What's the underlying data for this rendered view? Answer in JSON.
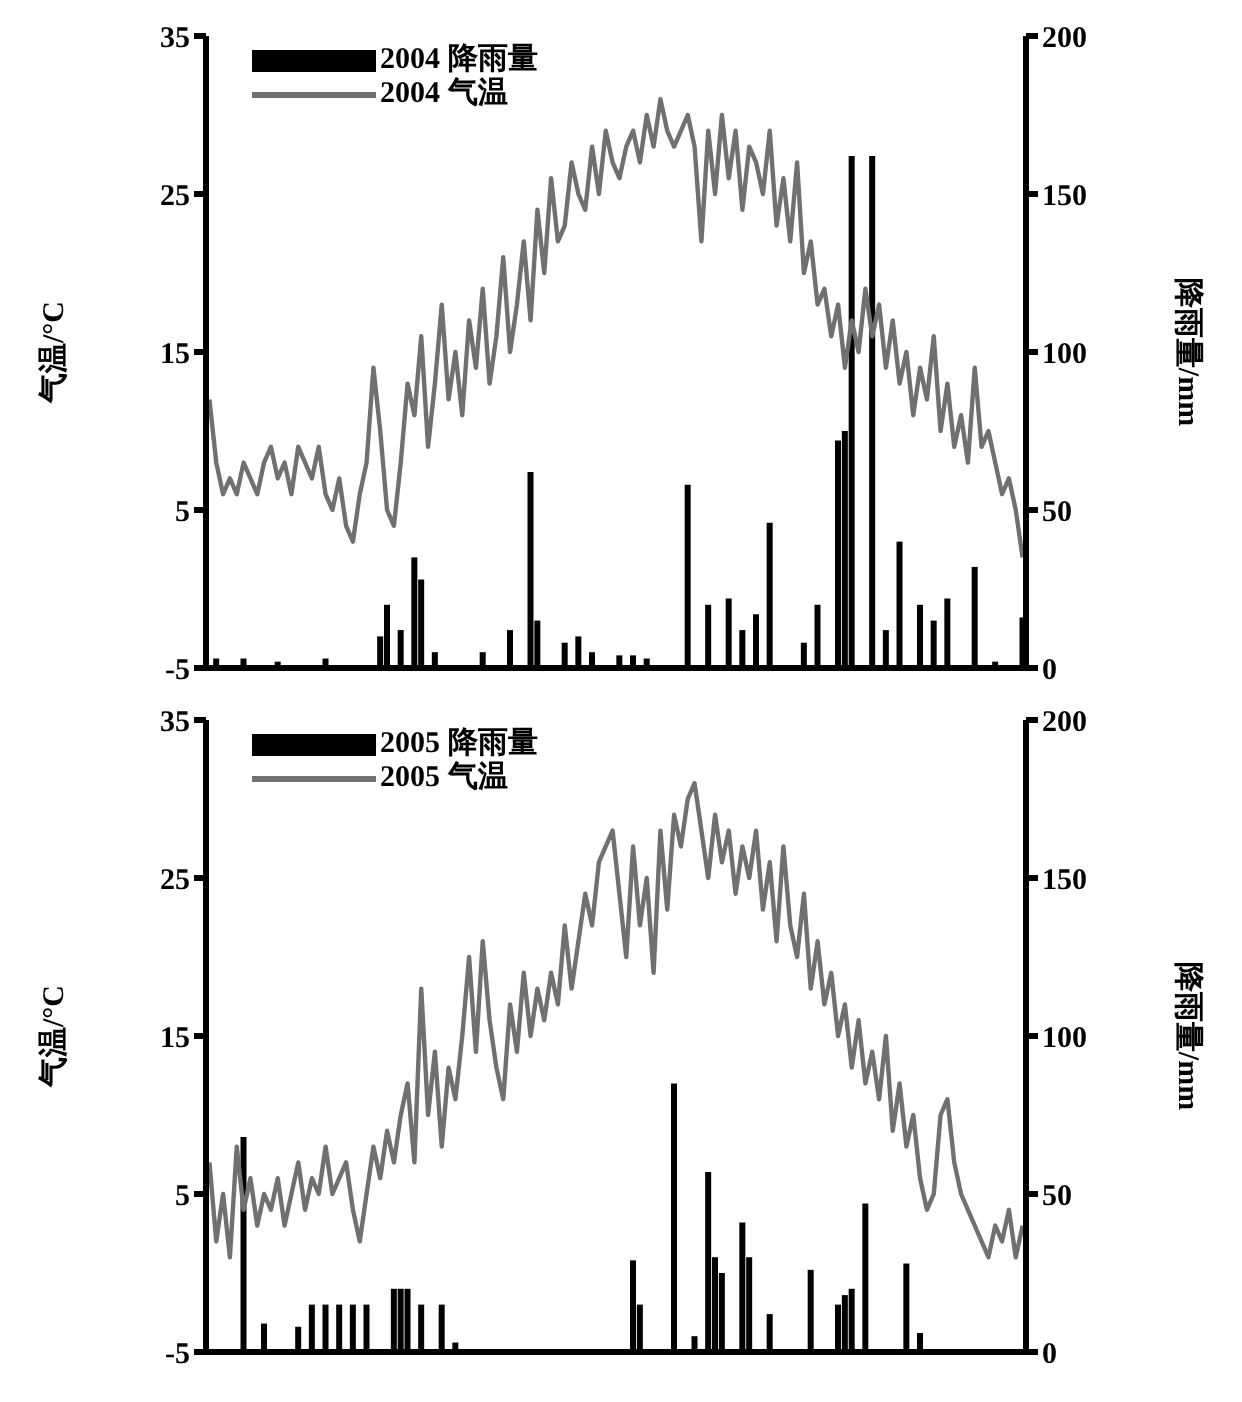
{
  "chart_data": [
    {
      "type": "bar",
      "ylabel": "气温/°C",
      "y2label": "降雨量/mm",
      "categories": [
        null,
        null,
        null,
        null,
        null,
        null,
        null,
        null,
        null,
        null,
        null,
        null,
        null,
        null,
        null,
        null,
        null,
        null,
        null,
        null,
        null,
        null,
        null,
        null,
        null,
        null,
        null,
        null,
        null,
        null,
        null,
        null,
        null,
        null,
        null,
        null,
        null,
        null,
        null,
        null,
        null,
        null,
        null,
        null,
        null,
        null,
        null,
        null,
        null,
        null,
        null,
        null,
        null,
        null,
        null,
        null,
        null,
        null,
        null,
        null,
        null,
        null,
        null,
        null,
        null,
        null,
        null,
        null,
        null,
        null,
        null,
        null,
        null,
        null,
        null,
        null,
        null,
        null,
        null,
        null,
        null,
        null,
        null,
        null,
        null,
        null,
        null,
        null,
        null,
        null,
        null,
        null,
        null,
        null,
        null,
        null,
        null,
        null,
        null,
        null,
        null,
        null,
        null,
        null,
        null,
        null,
        null,
        null,
        null,
        null,
        null,
        null,
        null,
        null,
        null,
        null,
        null,
        null,
        null,
        null
      ],
      "ylim": [
        -5,
        35
      ],
      "yticks": [
        -5,
        5,
        15,
        25,
        35
      ],
      "y2lim": [
        0,
        200
      ],
      "y2ticks": [
        0,
        50,
        100,
        150,
        200
      ],
      "legend": "top left",
      "series": [
        {
          "name": "2004 降雨量",
          "axis": "y2",
          "color": "#000000",
          "values": [
            null,
            3,
            null,
            null,
            null,
            3,
            null,
            null,
            null,
            null,
            2,
            null,
            null,
            null,
            null,
            null,
            null,
            3,
            null,
            null,
            null,
            null,
            null,
            null,
            null,
            10,
            20,
            null,
            12,
            null,
            35,
            28,
            null,
            5,
            null,
            null,
            null,
            null,
            null,
            null,
            5,
            null,
            null,
            null,
            12,
            null,
            null,
            62,
            15,
            null,
            null,
            null,
            8,
            null,
            10,
            null,
            5,
            null,
            null,
            null,
            4,
            null,
            4,
            null,
            3,
            null,
            null,
            null,
            null,
            null,
            58,
            null,
            null,
            20,
            null,
            null,
            22,
            null,
            12,
            null,
            17,
            null,
            46,
            null,
            null,
            null,
            null,
            8,
            null,
            20,
            null,
            null,
            72,
            75,
            162,
            null,
            null,
            162,
            null,
            12,
            null,
            40,
            null,
            null,
            20,
            null,
            15,
            null,
            22,
            null,
            null,
            null,
            32,
            null,
            null,
            2,
            null,
            null,
            null,
            16
          ]
        },
        {
          "name": "2004 气温",
          "type": "line",
          "color": "#707070",
          "values": [
            12,
            8,
            6,
            7,
            6,
            8,
            7,
            6,
            8,
            9,
            7,
            8,
            6,
            9,
            8,
            7,
            9,
            6,
            5,
            7,
            4,
            3,
            6,
            8,
            14,
            10,
            5,
            4,
            8,
            13,
            11,
            16,
            9,
            13,
            18,
            12,
            15,
            11,
            17,
            14,
            19,
            13,
            16,
            21,
            15,
            18,
            22,
            17,
            24,
            20,
            26,
            22,
            23,
            27,
            25,
            24,
            28,
            25,
            29,
            27,
            26,
            28,
            29,
            27,
            30,
            28,
            31,
            29,
            28,
            29,
            30,
            28,
            22,
            29,
            25,
            30,
            26,
            29,
            24,
            28,
            27,
            25,
            29,
            23,
            26,
            22,
            27,
            20,
            22,
            18,
            19,
            16,
            18,
            14,
            17,
            15,
            19,
            16,
            18,
            14,
            17,
            13,
            15,
            11,
            14,
            12,
            16,
            10,
            13,
            9,
            11,
            8,
            14,
            9,
            10,
            8,
            6,
            7,
            5,
            2
          ]
        }
      ]
    },
    {
      "type": "bar",
      "ylabel": "气温/°C",
      "y2label": "降雨量/mm",
      "categories": [
        null,
        null,
        null,
        null,
        null,
        null,
        null,
        null,
        null,
        null,
        null,
        null,
        null,
        null,
        null,
        null,
        null,
        null,
        null,
        null,
        null,
        null,
        null,
        null,
        null,
        null,
        null,
        null,
        null,
        null,
        null,
        null,
        null,
        null,
        null,
        null,
        null,
        null,
        null,
        null,
        null,
        null,
        null,
        null,
        null,
        null,
        null,
        null,
        null,
        null,
        null,
        null,
        null,
        null,
        null,
        null,
        null,
        null,
        null,
        null,
        null,
        null,
        null,
        null,
        null,
        null,
        null,
        null,
        null,
        null,
        null,
        null,
        null,
        null,
        null,
        null,
        null,
        null,
        null,
        null,
        null,
        null,
        null,
        null,
        null,
        null,
        null,
        null,
        null,
        null,
        null,
        null,
        null,
        null,
        null,
        null,
        null,
        null,
        null,
        null,
        null,
        null,
        null,
        null,
        null,
        null,
        null,
        null,
        null,
        null,
        null,
        null,
        null,
        null,
        null,
        null,
        null,
        null,
        null,
        null
      ],
      "ylim": [
        -5,
        35
      ],
      "yticks": [
        -5,
        5,
        15,
        25,
        35
      ],
      "y2lim": [
        0,
        200
      ],
      "y2ticks": [
        0,
        50,
        100,
        150,
        200
      ],
      "legend": "top left",
      "series": [
        {
          "name": "2005 降雨量",
          "axis": "y2",
          "color": "#000000",
          "values": [
            null,
            null,
            null,
            null,
            null,
            68,
            null,
            null,
            9,
            null,
            null,
            null,
            null,
            8,
            null,
            15,
            null,
            15,
            null,
            15,
            null,
            15,
            null,
            15,
            null,
            null,
            null,
            20,
            20,
            20,
            null,
            15,
            null,
            null,
            15,
            null,
            3,
            null,
            null,
            null,
            null,
            null,
            null,
            null,
            null,
            null,
            null,
            null,
            null,
            null,
            null,
            null,
            null,
            null,
            null,
            null,
            null,
            null,
            null,
            null,
            null,
            null,
            29,
            15,
            null,
            null,
            null,
            null,
            85,
            null,
            null,
            5,
            null,
            57,
            30,
            25,
            null,
            null,
            41,
            30,
            null,
            null,
            12,
            null,
            null,
            null,
            null,
            null,
            26,
            null,
            null,
            null,
            15,
            18,
            20,
            null,
            47,
            null,
            null,
            null,
            null,
            null,
            28,
            null,
            6,
            null,
            null,
            null,
            null,
            null,
            null,
            null,
            null,
            null,
            null,
            null,
            null,
            null,
            null,
            null
          ]
        },
        {
          "name": "2005 气温",
          "type": "line",
          "color": "#707070",
          "values": [
            7,
            2,
            5,
            1,
            8,
            4,
            6,
            3,
            5,
            4,
            6,
            3,
            5,
            7,
            4,
            6,
            5,
            8,
            5,
            6,
            7,
            4,
            2,
            5,
            8,
            6,
            9,
            7,
            10,
            12,
            7,
            18,
            10,
            14,
            8,
            13,
            11,
            15,
            20,
            14,
            21,
            16,
            13,
            11,
            17,
            14,
            19,
            15,
            18,
            16,
            19,
            17,
            22,
            18,
            21,
            24,
            22,
            26,
            27,
            28,
            24,
            20,
            27,
            22,
            25,
            19,
            28,
            23,
            29,
            27,
            30,
            31,
            28,
            25,
            29,
            26,
            28,
            24,
            27,
            25,
            28,
            23,
            26,
            21,
            27,
            22,
            20,
            24,
            18,
            21,
            17,
            19,
            15,
            17,
            13,
            16,
            12,
            14,
            11,
            15,
            9,
            12,
            8,
            10,
            6,
            4,
            5,
            10,
            11,
            7,
            5,
            4,
            3,
            2,
            1,
            3,
            2,
            4,
            1,
            3
          ]
        }
      ]
    }
  ]
}
